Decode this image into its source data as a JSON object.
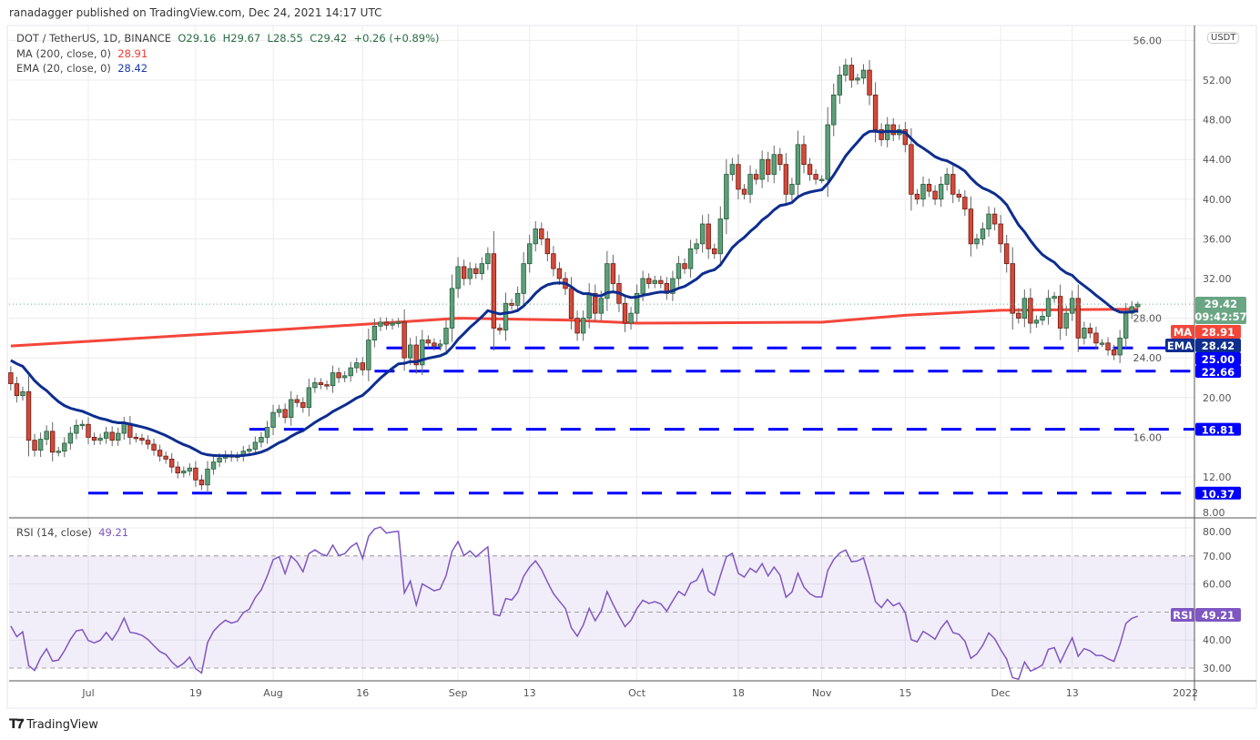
{
  "header": {
    "published": "ranadagger published on TradingView.com, Dec 24, 2021 14:17 UTC"
  },
  "legend": {
    "symbol": "DOT / TetherUS, 1D, BINANCE",
    "open": "O29.16",
    "high": "H29.67",
    "low": "L28.55",
    "close": "C29.42",
    "change": "+0.26 (+0.89%)",
    "ma_label": "MA (200, close, 0)",
    "ma_value": "28.91",
    "ema_label": "EMA (20, close, 0)",
    "ema_value": "28.42",
    "rsi_label": "RSI (14, close)",
    "rsi_value": "49.21"
  },
  "currency_badge": "USDT",
  "footer": {
    "brand": "TradingView"
  },
  "colors": {
    "up": "#5f9e7a",
    "up_border": "#235c3a",
    "down": "#d44a3a",
    "down_border": "#6b1a12",
    "ma": "#f4463a",
    "ema": "#0d2d8f",
    "level": "#0000ff",
    "rsi": "#7e57c2",
    "last_price": "#6aa584"
  },
  "chart_data": [
    {
      "type": "candlestick",
      "title": "DOT / TetherUS, 1D, BINANCE",
      "ylim": [
        8,
        56
      ],
      "y_ticks": [
        "56.00",
        "52.00",
        "48.00",
        "44.00",
        "40.00",
        "36.00",
        "32.00",
        "28.00",
        "24.00",
        "20.00",
        "16.00",
        "12.00",
        "8.00"
      ],
      "x_ticks": [
        [
          "2021-07-01",
          "Jul"
        ],
        [
          "2021-07-19",
          "19"
        ],
        [
          "2021-08-01",
          "Aug"
        ],
        [
          "2021-08-16",
          "16"
        ],
        [
          "2021-09-01",
          "Sep"
        ],
        [
          "2021-09-13",
          "13"
        ],
        [
          "2021-10-01",
          "Oct"
        ],
        [
          "2021-10-18",
          "18"
        ],
        [
          "2021-11-01",
          "Nov"
        ],
        [
          "2021-11-15",
          "15"
        ],
        [
          "2021-12-01",
          "Dec"
        ],
        [
          "2021-12-13",
          "13"
        ],
        [
          "2022-01-01",
          "2022"
        ]
      ],
      "grid": true,
      "first_open": 22.5,
      "last_candle": {
        "date": "2021-12-24",
        "open": 29.16,
        "high": 29.67,
        "low": 28.55,
        "close": 29.42
      },
      "daily_closes": [
        {
          "from": "2021-06-18",
          "to": "2021-06-30",
          "close": [
            21.4,
            20.2,
            20.6,
            15.7,
            14.7,
            15.8,
            16.6,
            14.5,
            14.6,
            15.4,
            16.4,
            17.2,
            17.3
          ]
        },
        {
          "from": "2021-07-01",
          "to": "2021-07-31",
          "close": [
            16.0,
            15.7,
            15.9,
            16.5,
            15.7,
            16.4,
            17.4,
            16.0,
            15.9,
            15.7,
            15.3,
            14.7,
            14.1,
            13.8,
            13.0,
            12.4,
            12.6,
            12.9,
            11.7,
            11.2,
            12.8,
            13.5,
            13.9,
            14.2,
            14.0,
            14.1,
            14.6,
            14.8,
            15.5,
            16.0,
            17.0
          ]
        },
        {
          "from": "2021-08-01",
          "to": "2021-08-31",
          "close": [
            18.5,
            18.8,
            18.0,
            19.8,
            19.5,
            19.0,
            21.0,
            21.5,
            21.3,
            21.2,
            22.5,
            22.0,
            22.2,
            23.0,
            23.5,
            22.8,
            25.8,
            27.2,
            27.6,
            27.3,
            27.5,
            27.6,
            24.0,
            25.3,
            23.3,
            25.8,
            25.5,
            25.2,
            25.4,
            27.0,
            31.0
          ]
        },
        {
          "from": "2021-09-01",
          "to": "2021-09-30",
          "close": [
            33.2,
            32.0,
            33.0,
            32.5,
            33.5,
            34.5,
            27.0,
            26.8,
            29.5,
            29.3,
            30.5,
            33.5,
            35.5,
            37.0,
            36.0,
            34.5,
            33.0,
            32.0,
            31.0,
            28.0,
            26.5,
            28.0,
            30.5,
            28.5,
            30.0,
            33.5,
            31.5,
            29.5,
            27.5,
            28.5
          ]
        },
        {
          "from": "2021-10-01",
          "to": "2021-10-31",
          "close": [
            30.5,
            32.0,
            31.5,
            31.8,
            31.5,
            30.5,
            32.0,
            33.5,
            33.0,
            35.0,
            35.5,
            37.5,
            35.0,
            34.5,
            38.0,
            42.5,
            43.5,
            41.0,
            40.5,
            42.5,
            42.0,
            44.0,
            42.5,
            44.5,
            43.5,
            40.5,
            41.5,
            45.5,
            43.5,
            42.5,
            42.0
          ]
        },
        {
          "from": "2021-11-01",
          "to": "2021-11-30",
          "close": [
            42.0,
            47.5,
            50.5,
            52.5,
            53.5,
            52.0,
            52.2,
            53.0,
            50.5,
            47.0,
            46.0,
            47.5,
            46.5,
            47.0,
            45.5,
            40.5,
            40.0,
            41.5,
            40.8,
            40.0,
            41.5,
            42.5,
            40.5,
            40.2,
            39.0,
            35.5,
            36.0,
            37.0,
            38.5,
            37.5
          ]
        },
        {
          "from": "2021-12-01",
          "to": "2021-12-24",
          "close": [
            35.5,
            33.5,
            28.5,
            28.0,
            30.0,
            27.5,
            27.8,
            28.2,
            30.0,
            30.2,
            27.0,
            28.5,
            30.0,
            26.0,
            27.0,
            26.5,
            25.5,
            25.5,
            24.8,
            24.3,
            26.0,
            28.5,
            29.16,
            29.42
          ]
        }
      ],
      "ma200": [
        [
          "2021-06-18",
          25.2
        ],
        [
          "2021-08-01",
          26.8
        ],
        [
          "2021-09-01",
          28.0
        ],
        [
          "2021-09-20",
          27.8
        ],
        [
          "2021-10-01",
          27.5
        ],
        [
          "2021-11-01",
          27.6
        ],
        [
          "2021-11-15",
          28.3
        ],
        [
          "2021-12-01",
          28.8
        ],
        [
          "2021-12-24",
          28.91
        ]
      ],
      "ema20_seed": 24.0,
      "levels": [
        {
          "value": 25.0,
          "label": "25.00",
          "from": "2021-08-20"
        },
        {
          "value": 22.66,
          "label": "22.66",
          "from": "2021-08-18"
        },
        {
          "value": 16.81,
          "label": "16.81",
          "from": "2021-07-28"
        },
        {
          "value": 10.37,
          "label": "10.37",
          "from": "2021-07-01"
        }
      ],
      "price_badges": {
        "last": "29.42",
        "countdown": "09:42:57",
        "ma_tag": "MA",
        "ma": "28.91",
        "ema_tag": "EMA",
        "ema": "28.42"
      }
    },
    {
      "type": "line",
      "title": "RSI (14, close)",
      "ylim": [
        25,
        82
      ],
      "y_ticks": [
        "80.00",
        "70.00",
        "60.00",
        "40.00",
        "30.00"
      ],
      "band": [
        30,
        70
      ],
      "midline": 50,
      "last_value": "49.21",
      "badge_tag": "RSI"
    }
  ]
}
